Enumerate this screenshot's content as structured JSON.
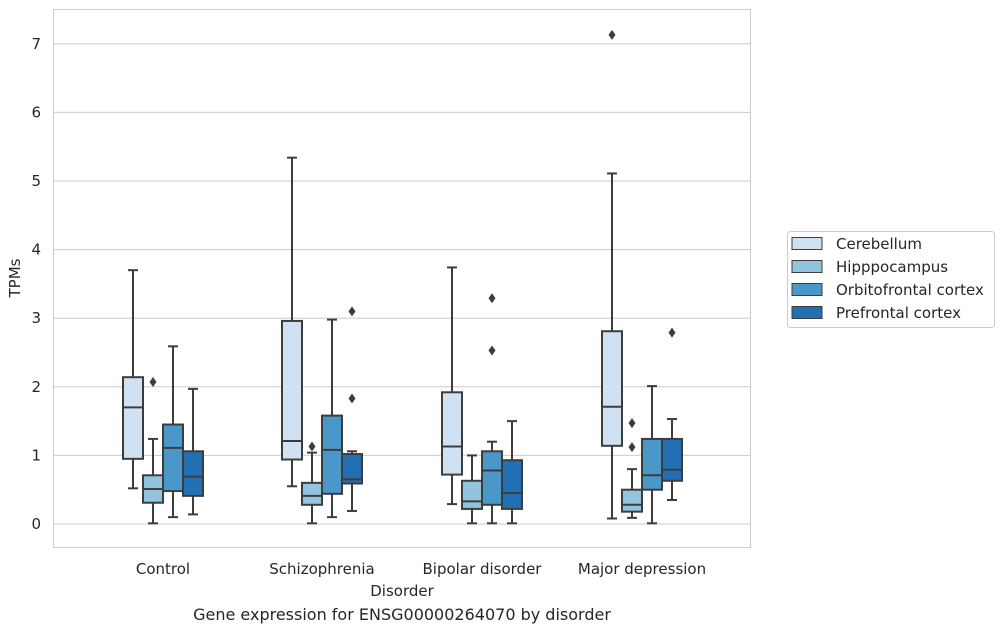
{
  "caption": "Gene expression for ENSG00000264070 by disorder",
  "chart_data": {
    "type": "boxplot",
    "xlabel": "Disorder",
    "ylabel": "TPMs",
    "ylim": [
      -0.35,
      7.5
    ],
    "yticks": [
      0,
      1,
      2,
      3,
      4,
      5,
      6,
      7
    ],
    "grid": "horizontal",
    "legend_position": "right",
    "categories": [
      "Control",
      "Schizophrenia",
      "Bipolar disorder",
      "Major depression"
    ],
    "series": [
      {
        "name": "Cerebellum",
        "color": "#cfe1f2",
        "boxes": [
          {
            "whislo": 0.52,
            "q1": 0.95,
            "med": 1.7,
            "q3": 2.14,
            "whishi": 3.7,
            "fliers": []
          },
          {
            "whislo": 0.55,
            "q1": 0.94,
            "med": 1.21,
            "q3": 2.96,
            "whishi": 5.34,
            "fliers": []
          },
          {
            "whislo": 0.29,
            "q1": 0.72,
            "med": 1.13,
            "q3": 1.92,
            "whishi": 3.74,
            "fliers": []
          },
          {
            "whislo": 0.08,
            "q1": 1.14,
            "med": 1.71,
            "q3": 2.81,
            "whishi": 5.11,
            "fliers": [
              7.13
            ]
          }
        ]
      },
      {
        "name": "Hipppocampus",
        "color": "#93c4de",
        "boxes": [
          {
            "whislo": 0.01,
            "q1": 0.31,
            "med": 0.51,
            "q3": 0.71,
            "whishi": 1.24,
            "fliers": [
              2.07
            ]
          },
          {
            "whislo": 0.01,
            "q1": 0.28,
            "med": 0.41,
            "q3": 0.6,
            "whishi": 1.04,
            "fliers": [
              1.13
            ]
          },
          {
            "whislo": 0.01,
            "q1": 0.22,
            "med": 0.33,
            "q3": 0.63,
            "whishi": 1.0,
            "fliers": []
          },
          {
            "whislo": 0.09,
            "q1": 0.18,
            "med": 0.28,
            "q3": 0.5,
            "whishi": 0.8,
            "fliers": [
              1.12,
              1.47
            ]
          }
        ]
      },
      {
        "name": "Orbitofrontal cortex",
        "color": "#4a98c9",
        "boxes": [
          {
            "whislo": 0.1,
            "q1": 0.48,
            "med": 1.11,
            "q3": 1.45,
            "whishi": 2.59,
            "fliers": []
          },
          {
            "whislo": 0.1,
            "q1": 0.44,
            "med": 1.08,
            "q3": 1.58,
            "whishi": 2.98,
            "fliers": []
          },
          {
            "whislo": 0.01,
            "q1": 0.28,
            "med": 0.78,
            "q3": 1.06,
            "whishi": 1.2,
            "fliers": [
              2.53,
              3.29
            ]
          },
          {
            "whislo": 0.01,
            "q1": 0.5,
            "med": 0.71,
            "q3": 1.24,
            "whishi": 2.01,
            "fliers": []
          }
        ]
      },
      {
        "name": "Prefrontal cortex",
        "color": "#2270b4",
        "boxes": [
          {
            "whislo": 0.14,
            "q1": 0.41,
            "med": 0.69,
            "q3": 1.06,
            "whishi": 1.97,
            "fliers": []
          },
          {
            "whislo": 0.19,
            "q1": 0.59,
            "med": 0.65,
            "q3": 1.02,
            "whishi": 1.06,
            "fliers": [
              1.83,
              3.1
            ]
          },
          {
            "whislo": 0.01,
            "q1": 0.22,
            "med": 0.45,
            "q3": 0.93,
            "whishi": 1.5,
            "fliers": []
          },
          {
            "whislo": 0.35,
            "q1": 0.63,
            "med": 0.79,
            "q3": 1.24,
            "whishi": 1.53,
            "fliers": [
              2.79
            ]
          }
        ]
      }
    ]
  }
}
